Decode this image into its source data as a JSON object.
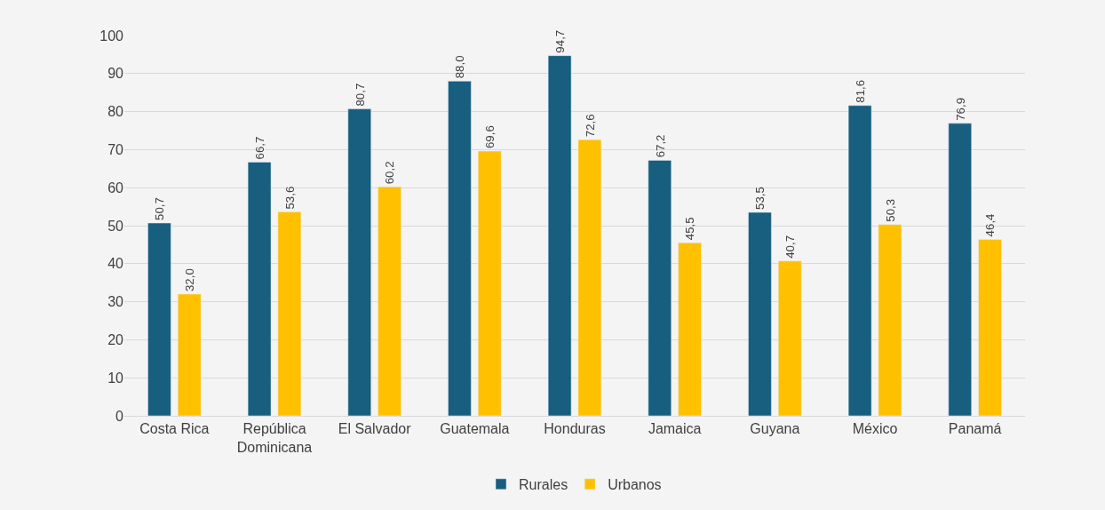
{
  "chart_data": {
    "type": "bar",
    "categories": [
      "Costa Rica",
      "República Dominicana",
      "El Salvador",
      "Guatemala",
      "Honduras",
      "Jamaica",
      "Guyana",
      "México",
      "Panamá"
    ],
    "series": [
      {
        "name": "Rurales",
        "color": "#175e7f",
        "values": [
          50.7,
          66.7,
          80.7,
          88.0,
          94.7,
          67.2,
          53.5,
          81.6,
          76.9
        ],
        "value_labels": [
          "50,7",
          "66,7",
          "80,7",
          "88,0",
          "94,7",
          "67,2",
          "53,5",
          "81,6",
          "76,9"
        ]
      },
      {
        "name": "Urbanos",
        "color": "#ffc000",
        "values": [
          32.0,
          53.6,
          60.2,
          69.6,
          72.6,
          45.5,
          40.7,
          50.3,
          46.4
        ],
        "value_labels": [
          "32,0",
          "53,6",
          "60,2",
          "69,6",
          "72,6",
          "45,5",
          "40,7",
          "50,3",
          "46,4"
        ]
      }
    ],
    "ylim": [
      0,
      100
    ],
    "yticks": [
      0,
      10,
      20,
      30,
      40,
      50,
      60,
      70,
      80,
      90,
      100
    ],
    "grid": "y",
    "legend": "bottom"
  }
}
